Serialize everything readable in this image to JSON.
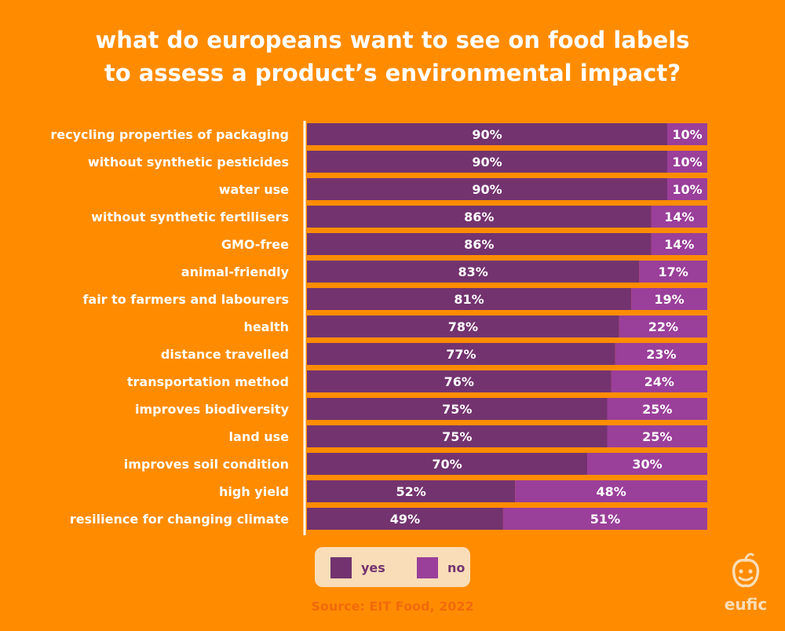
{
  "title_lines": [
    "what do europeans want to see on food labels",
    "to assess a product’s environmental impact?"
  ],
  "colors": {
    "background": "#FF8C00",
    "yes": "#73336F",
    "no": "#9A3F9A",
    "legend_bg": "#F9DDB8",
    "source_text": "#F26A0B"
  },
  "legend": {
    "yes_label": "yes",
    "no_label": "no"
  },
  "source": "Source: EIT Food, 2022",
  "logo": {
    "text": "eufic",
    "icon": "eufic-face-icon"
  },
  "chart_data": {
    "type": "bar",
    "orientation": "horizontal",
    "stacked": true,
    "title": "what do europeans want to see on food labels to assess a product’s environmental impact?",
    "categories": [
      "recycling properties of packaging",
      "without synthetic pesticides",
      "water use",
      "without synthetic fertilisers",
      "GMO-free",
      "animal-friendly",
      "fair to farmers and labourers",
      "health",
      "distance travelled",
      "transportation method",
      "improves biodiversity",
      "land use",
      "improves soil condition",
      "high yield",
      "resilience for changing climate"
    ],
    "series": [
      {
        "name": "yes",
        "values": [
          90,
          90,
          90,
          86,
          86,
          83,
          81,
          78,
          77,
          76,
          75,
          75,
          70,
          52,
          49
        ]
      },
      {
        "name": "no",
        "values": [
          10,
          10,
          10,
          14,
          14,
          17,
          19,
          22,
          23,
          24,
          25,
          25,
          30,
          48,
          51
        ]
      }
    ],
    "value_suffix": "%",
    "xlim": [
      0,
      100
    ],
    "legend_position": "bottom"
  }
}
